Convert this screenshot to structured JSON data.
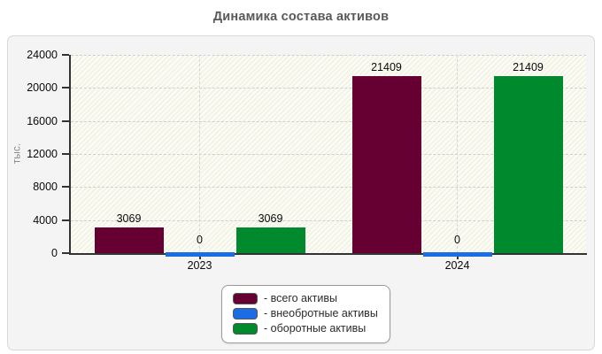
{
  "chart_data": {
    "type": "bar",
    "title": "Динамика состава активов",
    "ylabel": "тыс.",
    "xlabel": "",
    "categories": [
      "2023",
      "2024"
    ],
    "series": [
      {
        "name": "- всего активы",
        "color": "#660033",
        "values": [
          3069,
          21409
        ]
      },
      {
        "name": "- внеобротные активы",
        "color": "#1b6ce5",
        "values": [
          0,
          0
        ]
      },
      {
        "name": "- оборотные активы",
        "color": "#008a2d",
        "values": [
          3069,
          21409
        ]
      }
    ],
    "ylim": [
      0,
      24000
    ],
    "yticks": [
      0,
      4000,
      8000,
      12000,
      16000,
      20000,
      24000
    ],
    "grid": true,
    "plot_background": "hatched-ivory",
    "legend_position": "bottom-center",
    "bar_value_labels": true
  }
}
